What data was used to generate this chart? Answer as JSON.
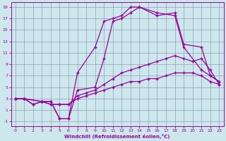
{
  "xlabel": "Windchill (Refroidissement éolien,°C)",
  "bg_color": "#cce8ec",
  "grid_color": "#9999bb",
  "line_color": "#990099",
  "xlim": [
    -0.5,
    23.5
  ],
  "ylim": [
    -1.8,
    19.8
  ],
  "xticks": [
    0,
    1,
    2,
    3,
    4,
    5,
    6,
    7,
    8,
    9,
    10,
    11,
    12,
    13,
    14,
    15,
    16,
    17,
    18,
    19,
    20,
    21,
    22,
    23
  ],
  "yticks": [
    -1,
    1,
    3,
    5,
    7,
    9,
    11,
    13,
    15,
    17,
    19
  ],
  "line_big_x": [
    0,
    1,
    3,
    4,
    5,
    6,
    7,
    9,
    10,
    11,
    12,
    13,
    14,
    16,
    18,
    19,
    21,
    22,
    23
  ],
  "line_big_y": [
    3,
    3,
    2.5,
    2.5,
    -0.5,
    -0.5,
    7.5,
    12,
    16.5,
    17,
    17.5,
    19,
    19,
    17.5,
    18,
    12.5,
    12,
    7,
    6
  ],
  "line_med_x": [
    0,
    1,
    3,
    4,
    5,
    6,
    7,
    9,
    10,
    11,
    12,
    13,
    14,
    16,
    18,
    19,
    21,
    22,
    23
  ],
  "line_med_y": [
    3,
    3,
    2.5,
    2.5,
    -0.5,
    -0.5,
    4.5,
    5,
    10,
    16.5,
    17,
    18,
    19,
    18,
    17.5,
    12,
    8,
    7,
    6
  ],
  "line_flat1_x": [
    0,
    1,
    2,
    3,
    4,
    5,
    6,
    7,
    8,
    9,
    10,
    11,
    12,
    13,
    14,
    15,
    16,
    17,
    18,
    19,
    20,
    21,
    22,
    23
  ],
  "line_flat1_y": [
    3,
    3,
    2,
    2.5,
    2,
    2,
    2,
    3.5,
    4,
    4.5,
    5.5,
    6.5,
    7.5,
    8,
    8.5,
    9,
    9.5,
    10,
    10.5,
    10,
    9.5,
    10,
    8,
    5.5
  ],
  "line_flat2_x": [
    0,
    1,
    2,
    3,
    4,
    5,
    6,
    7,
    8,
    9,
    10,
    11,
    12,
    13,
    14,
    15,
    16,
    17,
    18,
    19,
    20,
    21,
    22,
    23
  ],
  "line_flat2_y": [
    3,
    3,
    2,
    2.5,
    2,
    2,
    2,
    3,
    3.5,
    4,
    4.5,
    5,
    5.5,
    6,
    6,
    6.5,
    6.5,
    7,
    7.5,
    7.5,
    7.5,
    7,
    6,
    5.5
  ]
}
